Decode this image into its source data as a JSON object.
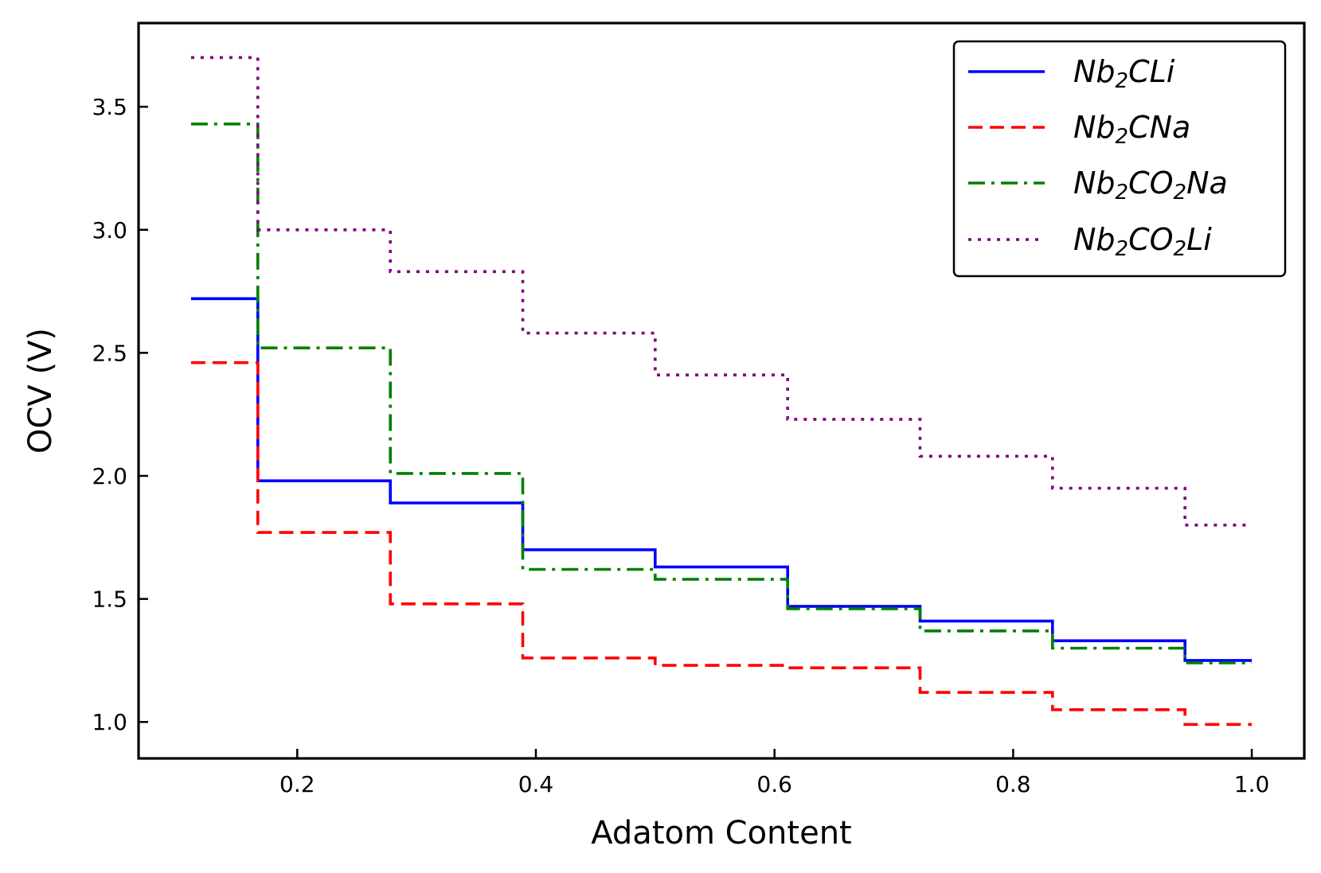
{
  "chart_data": {
    "type": "line",
    "step": "post",
    "title": "",
    "xlabel": "Adatom Content",
    "ylabel": "OCV (V)",
    "xlim": [
      0.067,
      1.044
    ],
    "ylim": [
      0.852,
      3.84
    ],
    "xticks": [
      0.2,
      0.4,
      0.6,
      0.8,
      1.0
    ],
    "xtick_labels": [
      "0.2",
      "0.4",
      "0.6",
      "0.8",
      "1.0"
    ],
    "yticks": [
      1.0,
      1.5,
      2.0,
      2.5,
      3.0,
      3.5
    ],
    "ytick_labels": [
      "1.0",
      "1.5",
      "2.0",
      "2.5",
      "3.0",
      "3.5"
    ],
    "grid": false,
    "legend_position": "top-right",
    "x": [
      0.111,
      0.167,
      0.278,
      0.389,
      0.5,
      0.611,
      0.722,
      0.833,
      0.944,
      1.0
    ],
    "series": [
      {
        "name": "Nb2CLi",
        "label_parts": [
          [
            "Nb",
            false
          ],
          [
            "2",
            true
          ],
          [
            "CLi",
            false
          ]
        ],
        "color": "#0000ff",
        "style": "solid",
        "values": [
          2.72,
          1.98,
          1.89,
          1.7,
          1.63,
          1.47,
          1.41,
          1.33,
          1.25,
          1.25
        ]
      },
      {
        "name": "Nb2CNa",
        "label_parts": [
          [
            "Nb",
            false
          ],
          [
            "2",
            true
          ],
          [
            "CNa",
            false
          ]
        ],
        "color": "#ff0000",
        "style": "dashed",
        "values": [
          2.46,
          1.77,
          1.48,
          1.26,
          1.23,
          1.22,
          1.12,
          1.05,
          0.99,
          0.99
        ]
      },
      {
        "name": "Nb2CO2Na",
        "label_parts": [
          [
            "Nb",
            false
          ],
          [
            "2",
            true
          ],
          [
            "CO",
            false
          ],
          [
            "2",
            true
          ],
          [
            "Na",
            false
          ]
        ],
        "color": "#008000",
        "style": "dashdot",
        "values": [
          3.43,
          2.52,
          2.01,
          1.62,
          1.58,
          1.46,
          1.37,
          1.3,
          1.24,
          1.24
        ]
      },
      {
        "name": "Nb2CO2Li",
        "label_parts": [
          [
            "Nb",
            false
          ],
          [
            "2",
            true
          ],
          [
            "CO",
            false
          ],
          [
            "2",
            true
          ],
          [
            "Li",
            false
          ]
        ],
        "color": "#800080",
        "style": "dotted",
        "values": [
          3.7,
          3.0,
          2.83,
          2.58,
          2.41,
          2.23,
          2.08,
          1.95,
          1.8,
          1.8
        ]
      }
    ]
  }
}
